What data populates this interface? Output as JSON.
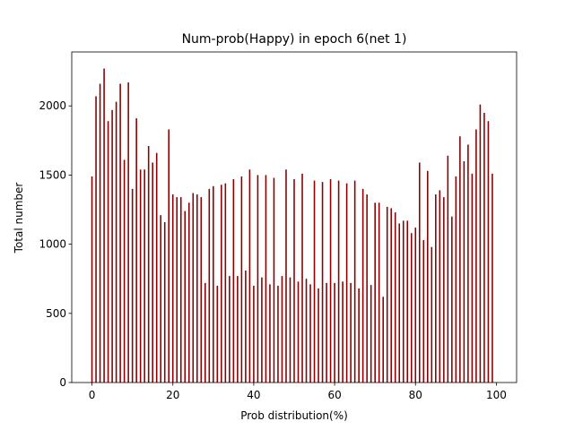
{
  "chart_data": {
    "type": "bar",
    "title": "Num-prob(Happy) in epoch 6(net 1)",
    "x_label": "Prob distribution(%)",
    "y_label": "Total number",
    "color": "#8b0000",
    "x": [
      0,
      1,
      2,
      3,
      4,
      5,
      6,
      7,
      8,
      9,
      10,
      11,
      12,
      13,
      14,
      15,
      16,
      17,
      18,
      19,
      20,
      21,
      22,
      23,
      24,
      25,
      26,
      27,
      28,
      29,
      30,
      31,
      32,
      33,
      34,
      35,
      36,
      37,
      38,
      39,
      40,
      41,
      42,
      43,
      44,
      45,
      46,
      47,
      48,
      49,
      50,
      51,
      52,
      53,
      54,
      55,
      56,
      57,
      58,
      59,
      60,
      61,
      62,
      63,
      64,
      65,
      66,
      67,
      68,
      69,
      70,
      71,
      72,
      73,
      74,
      75,
      76,
      77,
      78,
      79,
      80,
      81,
      82,
      83,
      84,
      85,
      86,
      87,
      88,
      89,
      90,
      91,
      92,
      93,
      94,
      95,
      96,
      97,
      98,
      99
    ],
    "values": [
      1490,
      2070,
      2160,
      2270,
      1890,
      1970,
      2030,
      2160,
      1610,
      2170,
      1400,
      1910,
      1540,
      1540,
      1710,
      1590,
      1660,
      1210,
      1160,
      1830,
      1360,
      1340,
      1340,
      1240,
      1300,
      1370,
      1360,
      1340,
      720,
      1400,
      1420,
      700,
      1430,
      1440,
      770,
      1470,
      770,
      1490,
      810,
      1540,
      700,
      1500,
      760,
      1500,
      710,
      1480,
      700,
      770,
      1540,
      760,
      1470,
      730,
      1510,
      750,
      710,
      1460,
      680,
      1450,
      720,
      1470,
      720,
      1460,
      730,
      1440,
      720,
      1460,
      680,
      1400,
      1360,
      705,
      1300,
      1300,
      620,
      1270,
      1260,
      1230,
      1150,
      1170,
      1170,
      1080,
      1120,
      1590,
      1030,
      1530,
      980,
      1360,
      1390,
      1340,
      1640,
      1200,
      1490,
      1780,
      1600,
      1720,
      1510,
      1830,
      2010,
      1950,
      1890,
      1510
    ],
    "xlim": [
      -5,
      105
    ],
    "ylim": [
      0,
      2390
    ],
    "xticks": [
      0,
      20,
      40,
      60,
      80,
      100
    ],
    "yticks": [
      0,
      500,
      1000,
      1500,
      2000
    ]
  }
}
